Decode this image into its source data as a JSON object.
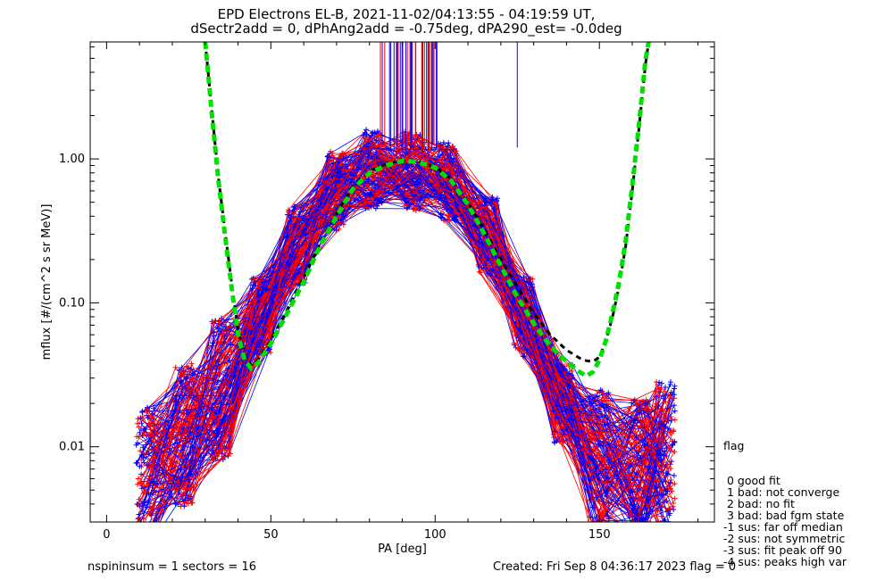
{
  "chart_data": {
    "type": "line",
    "title": "EPD Electrons EL-B, 2021-11-02/04:13:55 - 04:19:59 UT,",
    "subtitle": "dSectr2add = 0, dPhAng2add = -0.75deg, dPA290_est=  -0.0deg",
    "xlabel": "PA [deg]",
    "ylabel": "mflux [#/(cm^2 s sr MeV)]",
    "xlim": [
      -5,
      185
    ],
    "ylim": [
      0.003,
      6.5
    ],
    "yscale": "log",
    "x_ticks": [
      0,
      50,
      100,
      150
    ],
    "y_ticks": [
      0.01,
      0.1,
      1.0
    ],
    "y_tick_labels": [
      "0.01",
      "0.10",
      "1.00"
    ],
    "grid": false,
    "series": [
      {
        "color": "#000000",
        "style": "dashed",
        "points": [
          [
            30,
            6.5
          ],
          [
            32,
            2.2
          ],
          [
            34,
            0.75
          ],
          [
            36,
            0.32
          ],
          [
            38,
            0.14
          ],
          [
            40,
            0.065
          ],
          [
            42,
            0.043
          ],
          [
            44,
            0.037
          ],
          [
            46,
            0.04
          ],
          [
            50,
            0.055
          ],
          [
            55,
            0.09
          ],
          [
            60,
            0.15
          ],
          [
            65,
            0.26
          ],
          [
            70,
            0.42
          ],
          [
            75,
            0.65
          ],
          [
            80,
            0.82
          ],
          [
            85,
            0.92
          ],
          [
            90,
            0.98
          ],
          [
            95,
            0.96
          ],
          [
            100,
            0.88
          ],
          [
            105,
            0.72
          ],
          [
            110,
            0.5
          ],
          [
            115,
            0.32
          ],
          [
            120,
            0.2
          ],
          [
            125,
            0.13
          ],
          [
            130,
            0.085
          ],
          [
            135,
            0.06
          ],
          [
            140,
            0.047
          ],
          [
            145,
            0.04
          ],
          [
            148,
            0.039
          ],
          [
            150,
            0.042
          ],
          [
            152,
            0.055
          ],
          [
            154,
            0.08
          ],
          [
            156,
            0.13
          ],
          [
            158,
            0.25
          ],
          [
            160,
            0.6
          ],
          [
            162,
            1.6
          ],
          [
            164,
            4.5
          ],
          [
            165,
            6.5
          ]
        ]
      },
      {
        "color": "#00e000",
        "style": "dashed",
        "points": [
          [
            30,
            6.5
          ],
          [
            32,
            2.1
          ],
          [
            34,
            0.72
          ],
          [
            36,
            0.3
          ],
          [
            38,
            0.13
          ],
          [
            40,
            0.06
          ],
          [
            42,
            0.04
          ],
          [
            44,
            0.035
          ],
          [
            46,
            0.038
          ],
          [
            50,
            0.052
          ],
          [
            55,
            0.085
          ],
          [
            60,
            0.14
          ],
          [
            65,
            0.25
          ],
          [
            70,
            0.4
          ],
          [
            75,
            0.62
          ],
          [
            80,
            0.8
          ],
          [
            85,
            0.9
          ],
          [
            90,
            0.97
          ],
          [
            95,
            0.95
          ],
          [
            100,
            0.87
          ],
          [
            105,
            0.7
          ],
          [
            110,
            0.48
          ],
          [
            115,
            0.3
          ],
          [
            120,
            0.18
          ],
          [
            125,
            0.11
          ],
          [
            130,
            0.072
          ],
          [
            135,
            0.05
          ],
          [
            140,
            0.039
          ],
          [
            144,
            0.033
          ],
          [
            146,
            0.031
          ],
          [
            148,
            0.033
          ],
          [
            150,
            0.04
          ],
          [
            152,
            0.055
          ],
          [
            154,
            0.085
          ],
          [
            156,
            0.14
          ],
          [
            158,
            0.27
          ],
          [
            160,
            0.65
          ],
          [
            162,
            1.7
          ],
          [
            164,
            4.8
          ],
          [
            165,
            6.5
          ]
        ]
      }
    ],
    "legend": {
      "title": "flag",
      "entries": [
        " 0 good fit",
        " 1 bad: not converge",
        " 2 bad: no fit",
        " 3 bad: bad fgm state",
        "-1 sus: far off median",
        "-2 sus: not symmetric",
        "-3 sus: fit peak off 90",
        "-4 sus: peaks high var"
      ]
    },
    "trace_colors": [
      "#ff0000",
      "#0000ff"
    ],
    "trace_pa": [
      12,
      24,
      35,
      47,
      58,
      70,
      81,
      93,
      104,
      116,
      127,
      139,
      150,
      162,
      170
    ],
    "trace_base": [
      0.006,
      0.012,
      0.025,
      0.08,
      0.25,
      0.6,
      0.85,
      0.82,
      0.7,
      0.3,
      0.08,
      0.02,
      0.008,
      0.007,
      0.009
    ],
    "trace_count": 160
  },
  "footer": {
    "left": "nspininsum =  1  sectors = 16",
    "right": "Created: Fri Sep  8 04:36:17 2023   flag = 0"
  },
  "colors": {
    "red": "#ff0000",
    "blue": "#0000ff",
    "fit_black": "#000000",
    "fit_green": "#00e000"
  }
}
